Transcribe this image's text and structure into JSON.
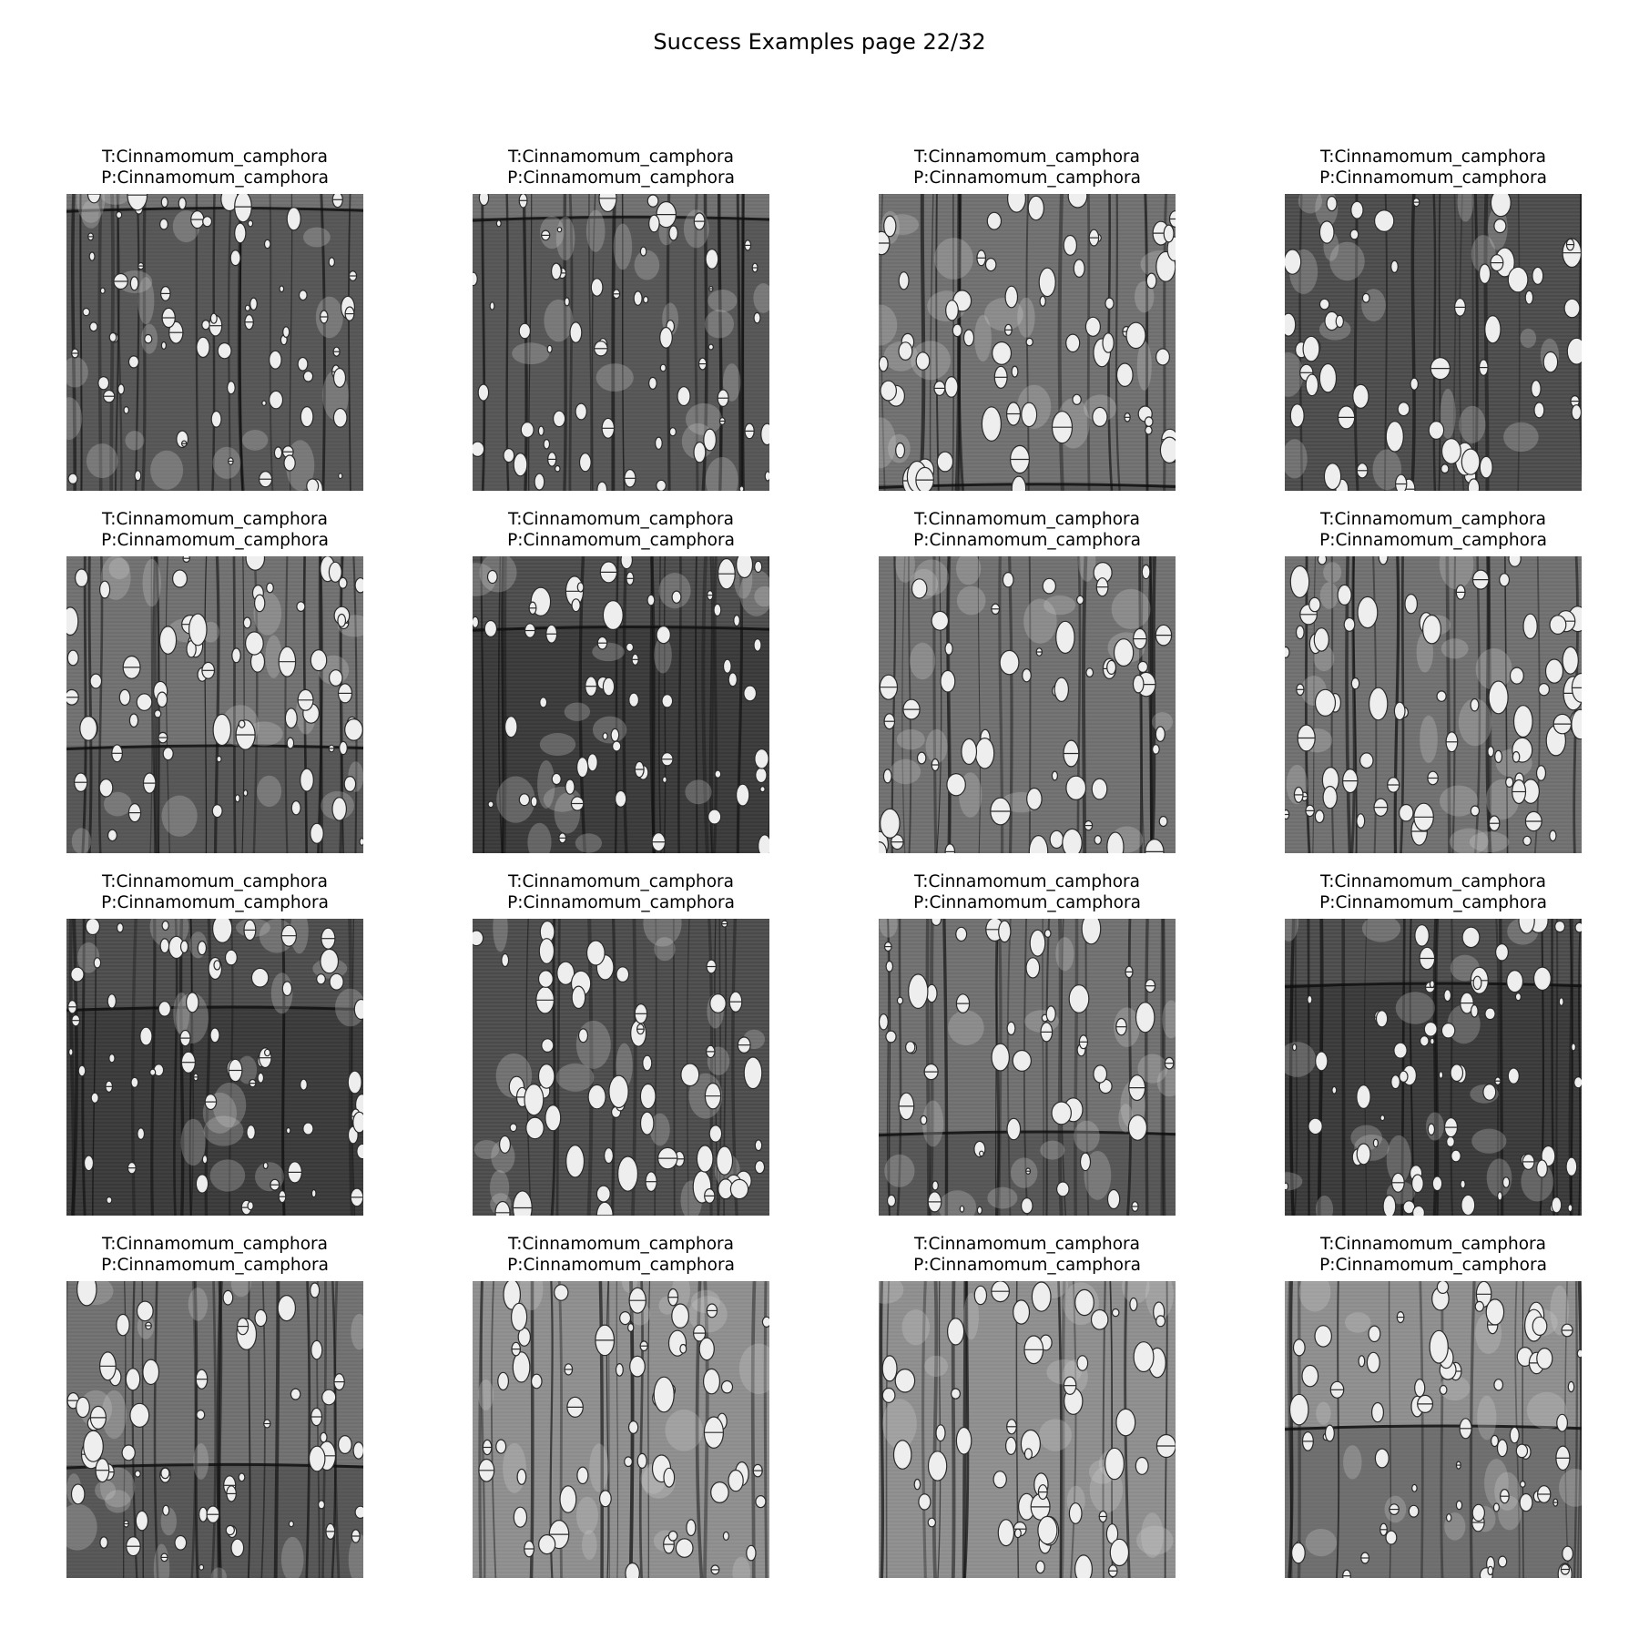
{
  "figure": {
    "title": "Success Examples page 22/32"
  },
  "samples": [
    {
      "true_label": "T:Cinnamomum_camphora",
      "pred_label": "P:Cinnamomum_camphora",
      "band_pos": 0.05,
      "tone": "mid"
    },
    {
      "true_label": "T:Cinnamomum_camphora",
      "pred_label": "P:Cinnamomum_camphora",
      "band_pos": 0.08,
      "tone": "mid"
    },
    {
      "true_label": "T:Cinnamomum_camphora",
      "pred_label": "P:Cinnamomum_camphora",
      "band_pos": 0.98,
      "tone": "mid"
    },
    {
      "true_label": "T:Cinnamomum_camphora",
      "pred_label": "P:Cinnamomum_camphora",
      "band_pos": null,
      "tone": "dark"
    },
    {
      "true_label": "T:Cinnamomum_camphora",
      "pred_label": "P:Cinnamomum_camphora",
      "band_pos": 0.64,
      "tone": "mid"
    },
    {
      "true_label": "T:Cinnamomum_camphora",
      "pred_label": "P:Cinnamomum_camphora",
      "band_pos": 0.24,
      "tone": "dark"
    },
    {
      "true_label": "T:Cinnamomum_camphora",
      "pred_label": "P:Cinnamomum_camphora",
      "band_pos": null,
      "tone": "mid"
    },
    {
      "true_label": "T:Cinnamomum_camphora",
      "pred_label": "P:Cinnamomum_camphora",
      "band_pos": null,
      "tone": "mid"
    },
    {
      "true_label": "T:Cinnamomum_camphora",
      "pred_label": "P:Cinnamomum_camphora",
      "band_pos": 0.3,
      "tone": "dark"
    },
    {
      "true_label": "T:Cinnamomum_camphora",
      "pred_label": "P:Cinnamomum_camphora",
      "band_pos": null,
      "tone": "dark"
    },
    {
      "true_label": "T:Cinnamomum_camphora",
      "pred_label": "P:Cinnamomum_camphora",
      "band_pos": 0.72,
      "tone": "mid"
    },
    {
      "true_label": "T:Cinnamomum_camphora",
      "pred_label": "P:Cinnamomum_camphora",
      "band_pos": 0.22,
      "tone": "dark"
    },
    {
      "true_label": "T:Cinnamomum_camphora",
      "pred_label": "P:Cinnamomum_camphora",
      "band_pos": 0.62,
      "tone": "mid"
    },
    {
      "true_label": "T:Cinnamomum_camphora",
      "pred_label": "P:Cinnamomum_camphora",
      "band_pos": null,
      "tone": "light"
    },
    {
      "true_label": "T:Cinnamomum_camphora",
      "pred_label": "P:Cinnamomum_camphora",
      "band_pos": null,
      "tone": "light"
    },
    {
      "true_label": "T:Cinnamomum_camphora",
      "pred_label": "P:Cinnamomum_camphora",
      "band_pos": 0.49,
      "tone": "light"
    }
  ]
}
